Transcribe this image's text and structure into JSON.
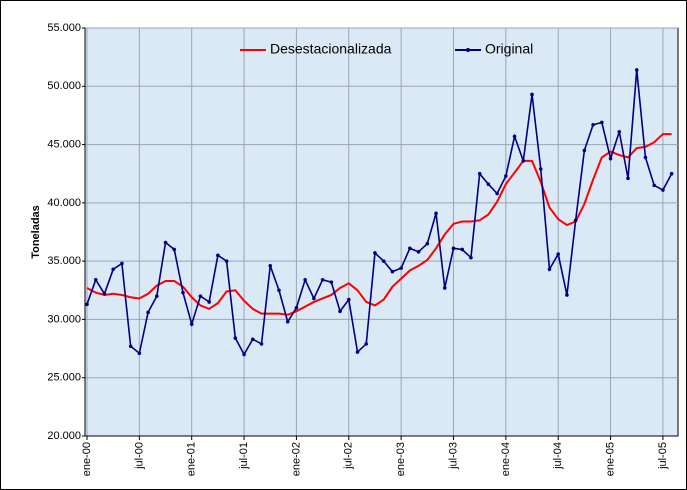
{
  "chart_data": {
    "type": "line",
    "y_label": "Toneladas",
    "categories": [
      "ene-00",
      null,
      null,
      null,
      null,
      null,
      "jul-00",
      null,
      null,
      null,
      null,
      null,
      "ene-01",
      null,
      null,
      null,
      null,
      null,
      "jul-01",
      null,
      null,
      null,
      null,
      null,
      "ene-02",
      null,
      null,
      null,
      null,
      null,
      "jul-02",
      null,
      null,
      null,
      null,
      null,
      "ene-03",
      null,
      null,
      null,
      null,
      null,
      "jul-03",
      null,
      null,
      null,
      null,
      null,
      "ene-04",
      null,
      null,
      null,
      null,
      null,
      "jul-04",
      null,
      null,
      null,
      null,
      null,
      "ene-05",
      null,
      null,
      null,
      null,
      null,
      "jul-05",
      null
    ],
    "series": [
      {
        "name": "Desestacionalizada",
        "color": "#ff0000",
        "marker": false,
        "values": [
          32700,
          32300,
          32100,
          32200,
          32100,
          31900,
          31800,
          32200,
          32900,
          33300,
          33300,
          32800,
          31900,
          31200,
          30900,
          31400,
          32400,
          32500,
          31600,
          30900,
          30500,
          30500,
          30500,
          30400,
          30700,
          31100,
          31500,
          31800,
          32100,
          32700,
          33100,
          32500,
          31500,
          31200,
          31700,
          32800,
          33500,
          34200,
          34600,
          35100,
          36100,
          37300,
          38200,
          38400,
          38400,
          38500,
          39000,
          40100,
          41600,
          42600,
          43600,
          43600,
          41800,
          39600,
          38600,
          38100,
          38400,
          39900,
          42000,
          43900,
          44400,
          44100,
          43900,
          44700,
          44800,
          45200,
          45900,
          45900
        ]
      },
      {
        "name": "Original",
        "color": "#000080",
        "marker": true,
        "values": [
          31300,
          33400,
          32200,
          34300,
          34800,
          27700,
          27100,
          30600,
          32000,
          36600,
          36000,
          32300,
          29600,
          32000,
          31500,
          35500,
          35000,
          28400,
          27000,
          28300,
          27900,
          34600,
          32500,
          29800,
          31000,
          33400,
          31800,
          33400,
          33200,
          30700,
          31700,
          27200,
          27900,
          35700,
          35000,
          34100,
          34400,
          36100,
          35800,
          36500,
          39100,
          32700,
          36100,
          36000,
          35300,
          42500,
          41600,
          40800,
          42300,
          45700,
          43600,
          49300,
          42900,
          34300,
          35600,
          32100,
          38500,
          44500,
          46700,
          46900,
          43800,
          46100,
          42100,
          51400,
          43900,
          41500,
          41100,
          42500
        ]
      }
    ],
    "ylim": [
      20000,
      55000
    ],
    "yticks": [
      {
        "value": 20000,
        "label": "20.000"
      },
      {
        "value": 25000,
        "label": "25.000"
      },
      {
        "value": 30000,
        "label": "30.000"
      },
      {
        "value": 35000,
        "label": "35.000"
      },
      {
        "value": 40000,
        "label": "40.000"
      },
      {
        "value": 45000,
        "label": "45.000"
      },
      {
        "value": 50000,
        "label": "50.000"
      },
      {
        "value": 55000,
        "label": "55.000"
      }
    ],
    "grid": true,
    "legend": "top"
  }
}
